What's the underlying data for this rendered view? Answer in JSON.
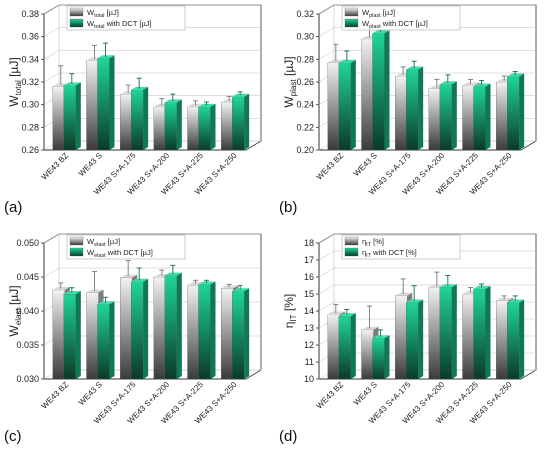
{
  "chart_data": [
    {
      "type": "bar",
      "panel_label": "(a)",
      "ylabel": {
        "base": "W",
        "sub": "total",
        "unit": " [µJ]"
      },
      "ylim": [
        0.26,
        0.38
      ],
      "yticks": [
        "0.26",
        "0.28",
        "0.30",
        "0.32",
        "0.34",
        "0.36",
        "0.38"
      ],
      "categories": [
        "WE43 BZ",
        "WE43 S",
        "WE43 S+A-175",
        "WE43 S+A-200",
        "WE43 S+A-225",
        "WE43 S+A-250"
      ],
      "series": [
        {
          "name": {
            "base": "W",
            "sub": "total",
            "rest": " [µJ]"
          },
          "values": [
            0.316,
            0.339,
            0.309,
            0.298,
            0.298,
            0.302
          ],
          "errors": [
            0.017,
            0.012,
            0.007,
            0.006,
            0.004,
            0.004
          ]
        },
        {
          "name": {
            "base": "W",
            "sub": "total",
            "rest": " with DCT [µJ]"
          },
          "values": [
            0.317,
            0.341,
            0.313,
            0.302,
            0.298,
            0.307
          ],
          "errors": [
            0.009,
            0.012,
            0.009,
            0.006,
            0.003,
            0.003
          ]
        }
      ]
    },
    {
      "type": "bar",
      "panel_label": "(b)",
      "ylabel": {
        "base": "W",
        "sub": "plast",
        "unit": " [µJ]"
      },
      "ylim": [
        0.2,
        0.32
      ],
      "yticks": [
        "0.20",
        "0.22",
        "0.24",
        "0.26",
        "0.28",
        "0.30",
        "0.32"
      ],
      "categories": [
        "WE43 BZ",
        "WE43 S",
        "WE43 S+A-175",
        "WE43 S+A-200",
        "WE43 S+A-225",
        "WE43 S+A-250"
      ],
      "series": [
        {
          "name": {
            "base": "W",
            "sub": "plast",
            "rest": " [µJ]"
          },
          "values": [
            0.277,
            0.298,
            0.265,
            0.254,
            0.257,
            0.26
          ],
          "errors": [
            0.015,
            0.014,
            0.007,
            0.007,
            0.004,
            0.004
          ]
        },
        {
          "name": {
            "base": "W",
            "sub": "plast",
            "rest": " with DCT [µJ]"
          },
          "values": [
            0.277,
            0.303,
            0.271,
            0.258,
            0.256,
            0.265
          ],
          "errors": [
            0.009,
            0.011,
            0.006,
            0.007,
            0.004,
            0.003
          ]
        }
      ]
    },
    {
      "type": "bar",
      "panel_label": "(c)",
      "ylabel": {
        "base": "W",
        "sub": "elast",
        "unit": " [µJ]"
      },
      "ylim": [
        0.03,
        0.05
      ],
      "yticks": [
        "0.030",
        "0.035",
        "0.040",
        "0.045",
        "0.050"
      ],
      "categories": [
        "WE43 BZ",
        "WE43 S",
        "WE43 S+A-175",
        "WE43 S+A-200",
        "WE43 S+A-225",
        "WE43 S+A-250"
      ],
      "series": [
        {
          "name": {
            "base": "W",
            "sub": "elast",
            "rest": " [µJ]"
          },
          "values": [
            0.0431,
            0.0427,
            0.0449,
            0.045,
            0.0438,
            0.0433
          ],
          "errors": [
            0.0008,
            0.0029,
            0.0023,
            0.0008,
            0.0005,
            0.0004
          ]
        },
        {
          "name": {
            "base": "W",
            "sub": "elast",
            "rest": " with DCT [µJ]"
          },
          "values": [
            0.0425,
            0.041,
            0.0443,
            0.0452,
            0.0439,
            0.0429
          ],
          "errors": [
            0.0007,
            0.0008,
            0.0018,
            0.0013,
            0.0004,
            0.0006
          ]
        }
      ]
    },
    {
      "type": "bar",
      "panel_label": "(d)",
      "ylabel": {
        "base": "η",
        "sub": "IT",
        "unit": " [%]"
      },
      "ylim": [
        10,
        18
      ],
      "yticks": [
        "10",
        "11",
        "12",
        "13",
        "14",
        "15",
        "16",
        "17",
        "18"
      ],
      "categories": [
        "WE43 BZ",
        "WE43 S",
        "WE43 S+A-175",
        "WE43 S+A-200",
        "WE43 S+A-225",
        "WE43 S+A-250"
      ],
      "series": [
        {
          "name": {
            "base": "η",
            "sub": "IT",
            "rest": " [%]"
          },
          "values": [
            13.8,
            12.9,
            14.9,
            15.4,
            15.0,
            14.6
          ],
          "errors": [
            0.5,
            1.3,
            0.9,
            0.8,
            0.3,
            0.2
          ]
        },
        {
          "name": {
            "base": "η",
            "sub": "IT",
            "rest": " with DCT [%]"
          },
          "values": [
            13.7,
            12.4,
            14.5,
            15.4,
            15.3,
            14.5
          ],
          "errors": [
            0.3,
            0.4,
            0.9,
            0.6,
            0.2,
            0.3
          ]
        }
      ]
    }
  ],
  "colors": {
    "series1_top": "#f2f2f2",
    "series1_bottom": "#3a3a3a",
    "series2_top": "#1fd49a",
    "series2_bottom": "#0b3a27",
    "axis": "#333333",
    "grid": "#bfbfbf"
  }
}
